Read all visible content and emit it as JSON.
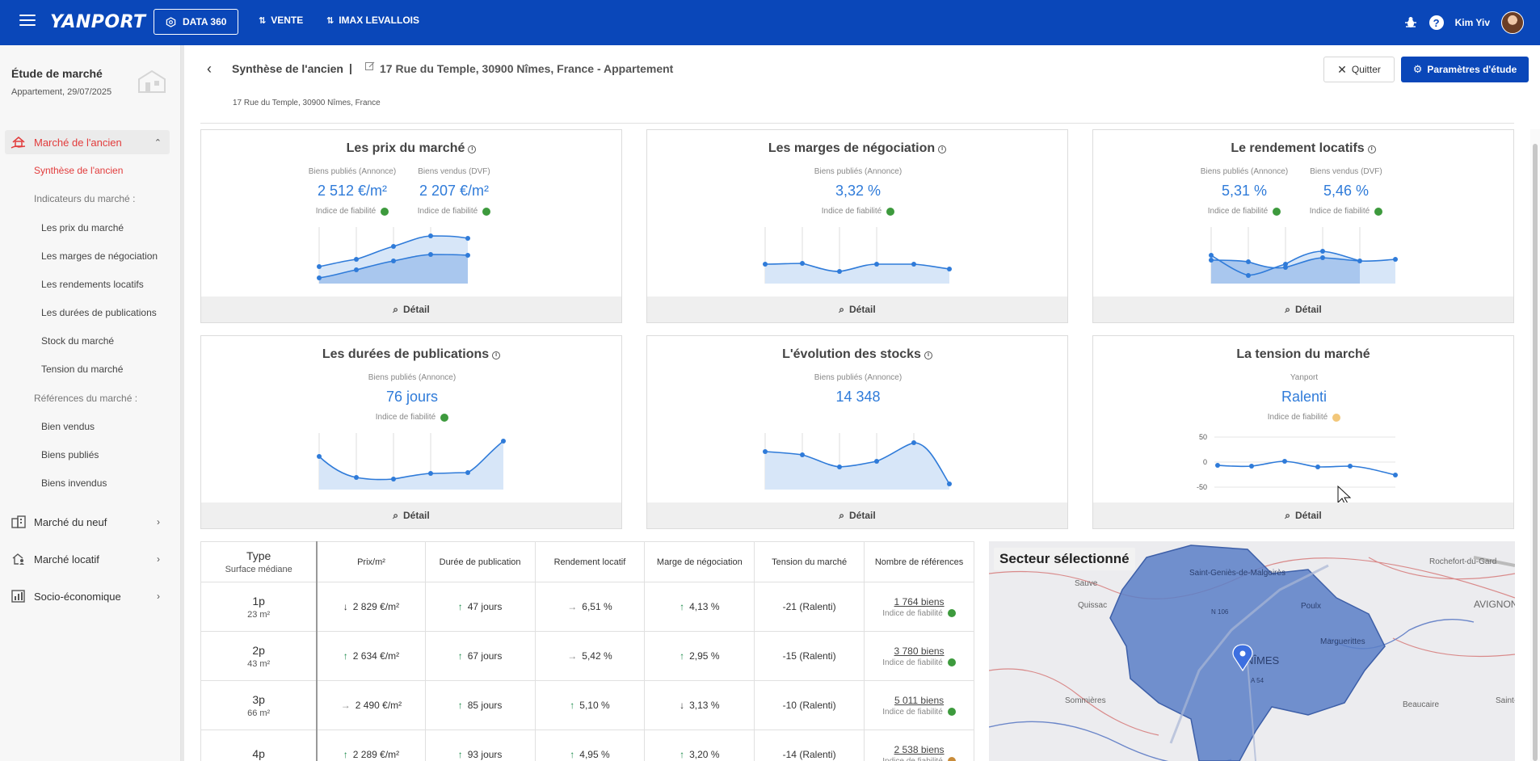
{
  "header": {
    "brand": "YANPORT",
    "module_label": "DATA 360",
    "nav": [
      "VENTE",
      "IMAX LEVALLOIS"
    ],
    "user_name": "Kim Yiv"
  },
  "sidebar": {
    "study_title": "Étude de marché",
    "study_subtitle": "Appartement, 29/07/2025",
    "active_section": "Marché de l'ancien",
    "active_item": "Synthèse de l'ancien",
    "indicators_heading": "Indicateurs du marché :",
    "indicators": [
      "Les prix du marché",
      "Les marges de négociation",
      "Les rendements locatifs",
      "Les durées de publications",
      "Stock du marché",
      "Tension du marché"
    ],
    "references_heading": "Références du marché :",
    "references": [
      "Bien vendus",
      "Biens publiés",
      "Biens invendus"
    ],
    "sections": [
      "Marché du neuf",
      "Marché locatif",
      "Socio-économique"
    ]
  },
  "page": {
    "title": "Synthèse de l'ancien",
    "separator": "|",
    "address_title": "17 Rue du Temple, 30900 Nîmes, France - Appartement",
    "address_sub": "17 Rue du Temple, 30900 Nîmes, France",
    "quit_label": "Quitter",
    "params_label": "Paramètres d'étude"
  },
  "cards": {
    "detail_label": "Détail",
    "reliability_label": "Indice de fiabilité",
    "prix": {
      "title": "Les prix du marché",
      "left_label": "Biens publiés (Annonce)",
      "left_value": "2 512 €/m²",
      "right_label": "Biens vendus (DVF)",
      "right_value": "2 207 €/m²"
    },
    "marges": {
      "title": "Les marges de négociation",
      "label": "Biens publiés (Annonce)",
      "value": "3,32 %"
    },
    "rendement": {
      "title": "Le rendement locatifs",
      "left_label": "Biens publiés (Annonce)",
      "left_value": "5,31 %",
      "right_label": "Biens vendus (DVF)",
      "right_value": "5,46 %"
    },
    "durees": {
      "title": "Les durées de publications",
      "label": "Biens publiés (Annonce)",
      "value": "76 jours"
    },
    "stocks": {
      "title": "L'évolution des stocks",
      "label": "Biens publiés (Annonce)",
      "value": "14 348"
    },
    "tension": {
      "title": "La tension du marché",
      "label": "Yanport",
      "value": "Ralenti",
      "ticks": [
        "50",
        "0",
        "-50"
      ]
    }
  },
  "colors": {
    "brand": "#0a47b9",
    "accent_value": "#2f7bd9",
    "active_menu": "#e23b3b",
    "reliable_green": "#3d9a3d",
    "medium_yellow": "#f2c77a",
    "fill": "#c9dcf5"
  },
  "table": {
    "headers": {
      "type": "Type",
      "type_sub": "Surface médiane",
      "cols": [
        "Prix/m²",
        "Durée de publication",
        "Rendement locatif",
        "Marge de négociation",
        "Tension du marché",
        "Nombre de références"
      ]
    },
    "reliability_label": "Indice de fiabilité",
    "rows": [
      {
        "type": "1p",
        "surface": "23 m²",
        "prix": "2 829 €/m²",
        "prix_trend": "down",
        "duree": "47 jours",
        "duree_trend": "up",
        "rendement": "6,51 %",
        "rendement_trend": "flat",
        "marge": "4,13 %",
        "marge_trend": "up",
        "tension": "-21 (Ralenti)",
        "refs": "1 764 biens",
        "dot": "green"
      },
      {
        "type": "2p",
        "surface": "43 m²",
        "prix": "2 634 €/m²",
        "prix_trend": "up",
        "duree": "67 jours",
        "duree_trend": "up",
        "rendement": "5,42 %",
        "rendement_trend": "flat",
        "marge": "2,95 %",
        "marge_trend": "up",
        "tension": "-15 (Ralenti)",
        "refs": "3 780 biens",
        "dot": "green"
      },
      {
        "type": "3p",
        "surface": "66 m²",
        "prix": "2 490 €/m²",
        "prix_trend": "flat",
        "duree": "85 jours",
        "duree_trend": "up",
        "rendement": "5,10 %",
        "rendement_trend": "up",
        "marge": "3,13 %",
        "marge_trend": "down",
        "tension": "-10 (Ralenti)",
        "refs": "5 011 biens",
        "dot": "green"
      },
      {
        "type": "4p",
        "surface": "",
        "prix": "2 289 €/m²",
        "prix_trend": "up",
        "duree": "93 jours",
        "duree_trend": "up",
        "rendement": "4,95 %",
        "rendement_trend": "up",
        "marge": "3,20 %",
        "marge_trend": "up",
        "tension": "-14 (Ralenti)",
        "refs": "2 538 biens",
        "dot": "orange"
      }
    ]
  },
  "map": {
    "label": "Secteur sélectionné",
    "places": [
      "Rochefort-du-Gard",
      "AVIGNON",
      "Saint-Geniès-de-Malgoirès",
      "Sauve",
      "Quissac",
      "Poulx",
      "Marguerittes",
      "NÎMES",
      "Beaucaire",
      "Sommières",
      "Saint-Gilles",
      "N 106",
      "A 54"
    ]
  }
}
